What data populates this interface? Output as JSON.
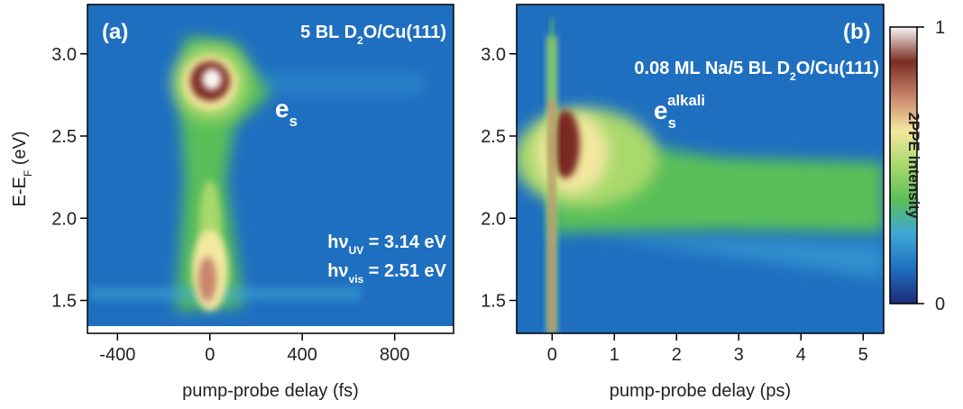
{
  "chart_data": [
    {
      "type": "heatmap",
      "panel_label": "(a)",
      "annotation": [
        "5 BL D",
        "2",
        "O/Cu(111)"
      ],
      "state_label": [
        "e",
        "s"
      ],
      "photon_energies": [
        [
          "hν",
          "UV",
          " = 3.14 eV"
        ],
        [
          "hν",
          "vis",
          " = 2.51 eV"
        ]
      ],
      "x_label": "pump-probe delay (fs)",
      "y_label": [
        "E-E",
        "F",
        " (eV)"
      ],
      "xlim": [
        -530,
        1055
      ],
      "xticks": [
        -400,
        0,
        400,
        800
      ],
      "ylim": [
        1.3,
        3.3
      ],
      "yticks": [
        1.5,
        {
          "value": 2.0,
          "label": "2.0"
        },
        2.5,
        {
          "value": 3.0,
          "label": "3.0"
        }
      ]
    },
    {
      "type": "heatmap",
      "panel_label": "(b)",
      "annotation": [
        "0.08 ML Na/5 BL D",
        "2",
        "O/Cu(111)"
      ],
      "state_label": [
        "e",
        "s",
        "alkali"
      ],
      "x_label": "pump-probe delay (ps)",
      "xlim": [
        -0.57,
        5.33
      ],
      "xticks": [
        0,
        1,
        2,
        3,
        4,
        5
      ],
      "ylim": [
        1.3,
        3.3
      ],
      "yticks": [
        1.5,
        {
          "value": 2.0,
          "label": "2.0"
        },
        2.5,
        {
          "value": 3.0,
          "label": "3.0"
        }
      ],
      "colorbar": {
        "label": "2PPE intensity",
        "lim": [
          0,
          1
        ],
        "ticks": [
          0,
          1
        ]
      },
      "colorscale": [
        "#1c2b78",
        "#1f6fc0",
        "#3ea6d6",
        "#5abf58",
        "#a9d86c",
        "#f3e8a0",
        "#c8846c",
        "#7a2c22",
        "#faf6f6"
      ]
    }
  ]
}
